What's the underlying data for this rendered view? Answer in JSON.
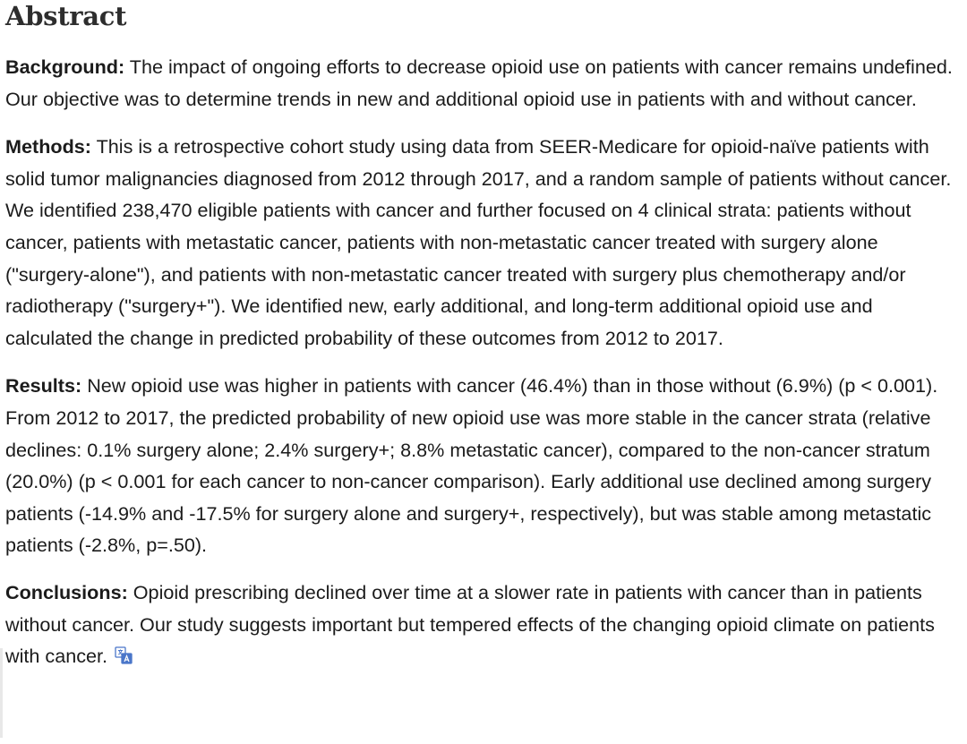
{
  "abstract": {
    "title": "Abstract",
    "background": {
      "label": "Background:",
      "text": " The impact of ongoing efforts to decrease opioid use on patients with cancer remains undefined. Our objective was to determine trends in new and additional opioid use in patients with and without cancer."
    },
    "methods": {
      "label": "Methods:",
      "text": " This is a retrospective cohort study using data from SEER-Medicare for opioid-naïve patients with solid tumor malignancies diagnosed from 2012 through 2017, and a random sample of patients without cancer. We identified 238,470 eligible patients with cancer and further focused on 4 clinical strata: patients without cancer, patients with metastatic cancer, patients with non-metastatic cancer treated with surgery alone (\"surgery-alone\"), and patients with non-metastatic cancer treated with surgery plus chemotherapy and/or radiotherapy (\"surgery+\"). We identified new, early additional, and long-term additional opioid use and calculated the change in predicted probability of these outcomes from 2012 to 2017."
    },
    "results": {
      "label": "Results:",
      "text": " New opioid use was higher in patients with cancer (46.4%) than in those without (6.9%) (p < 0.001). From 2012 to 2017, the predicted probability of new opioid use was more stable in the cancer strata (relative declines: 0.1% surgery alone; 2.4% surgery+; 8.8% metastatic cancer), compared to the non-cancer stratum (20.0%) (p < 0.001 for each cancer to non-cancer comparison). Early additional use declined among surgery patients (-14.9% and -17.5% for surgery alone and surgery+, respectively), but was stable among metastatic patients (-2.8%, p=.50)."
    },
    "conclusions": {
      "label": "Conclusions:",
      "text": " Opioid prescribing declined over time at a slower rate in patients with cancer than in patients without cancer. Our study suggests important but tempered effects of the changing opioid climate on patients with cancer."
    }
  },
  "icons": {
    "translate": "translate-icon"
  },
  "colors": {
    "text": "#1b1b1b",
    "heading": "#2d2d2d",
    "icon_blue": "#4a76c9"
  }
}
